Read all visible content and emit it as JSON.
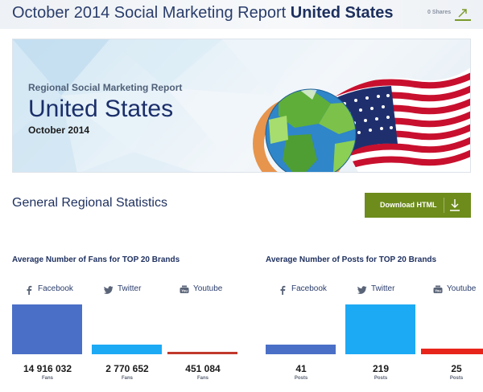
{
  "header": {
    "title_prefix": "October 2014 Social Marketing Report",
    "title_country": "United States",
    "shares": "0 Shares"
  },
  "banner": {
    "subtitle": "Regional Social Marketing Report",
    "country": "United States",
    "date": "October 2014"
  },
  "section": {
    "title": "General Regional Statistics",
    "download_label": "Download HTML"
  },
  "colors": {
    "facebook": "#4a6fc6",
    "twitter": "#1daaf5",
    "youtube_fans": "#c0392b",
    "youtube_posts": "#e8251b",
    "accent": "#6d8c1c"
  },
  "fans": {
    "title": "Average Number of Fans for TOP 20 Brands",
    "unit": "Fans",
    "networks": [
      {
        "name": "Facebook",
        "icon": "facebook-icon",
        "value": 14916032,
        "display": "14 916 032"
      },
      {
        "name": "Twitter",
        "icon": "twitter-icon",
        "value": 2770652,
        "display": "2 770 652"
      },
      {
        "name": "Youtube",
        "icon": "youtube-icon",
        "value": 451084,
        "display": "451 084"
      }
    ]
  },
  "posts": {
    "title": "Average Number of Posts for TOP 20 Brands",
    "unit": "Posts",
    "networks": [
      {
        "name": "Facebook",
        "icon": "facebook-icon",
        "value": 41,
        "display": "41"
      },
      {
        "name": "Twitter",
        "icon": "twitter-icon",
        "value": 219,
        "display": "219"
      },
      {
        "name": "Youtube",
        "icon": "youtube-icon",
        "value": 25,
        "display": "25"
      }
    ]
  }
}
